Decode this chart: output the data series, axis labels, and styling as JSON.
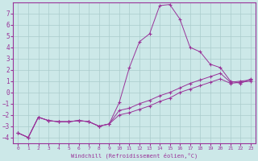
{
  "xlabel": "Windchill (Refroidissement éolien,°C)",
  "bg_color": "#cce8e8",
  "grid_color": "#aacccc",
  "line_color": "#993399",
  "xlim": [
    -0.5,
    23.5
  ],
  "ylim": [
    -4.5,
    8.0
  ],
  "xticks": [
    0,
    1,
    2,
    3,
    4,
    5,
    6,
    7,
    8,
    9,
    10,
    11,
    12,
    13,
    14,
    15,
    16,
    17,
    18,
    19,
    20,
    21,
    22,
    23
  ],
  "yticks": [
    -4,
    -3,
    -2,
    -1,
    0,
    1,
    2,
    3,
    4,
    5,
    6,
    7
  ],
  "line1_x": [
    0,
    1,
    2,
    3,
    4,
    5,
    6,
    7,
    8,
    9,
    10,
    11,
    12,
    13,
    14,
    15,
    16,
    17,
    18,
    19,
    20,
    21,
    22,
    23
  ],
  "line1_y": [
    -3.6,
    -4.0,
    -2.2,
    -2.5,
    -2.6,
    -2.6,
    -2.5,
    -2.6,
    -3.0,
    -2.8,
    -0.9,
    2.2,
    4.5,
    5.2,
    7.7,
    7.8,
    6.5,
    4.0,
    3.6,
    2.5,
    2.2,
    1.0,
    0.8,
    1.2
  ],
  "line2_x": [
    0,
    1,
    2,
    3,
    4,
    5,
    6,
    7,
    8,
    9,
    10,
    11,
    12,
    13,
    14,
    15,
    16,
    17,
    18,
    19,
    20,
    21,
    22,
    23
  ],
  "line2_y": [
    -3.6,
    -4.0,
    -2.2,
    -2.5,
    -2.6,
    -2.6,
    -2.5,
    -2.6,
    -3.0,
    -2.8,
    -2.0,
    -1.8,
    -1.5,
    -1.2,
    -0.8,
    -0.5,
    0.0,
    0.3,
    0.6,
    0.9,
    1.2,
    0.8,
    0.9,
    1.0
  ],
  "line3_x": [
    0,
    1,
    2,
    3,
    4,
    5,
    6,
    7,
    8,
    9,
    10,
    11,
    12,
    13,
    14,
    15,
    16,
    17,
    18,
    19,
    20,
    21,
    22,
    23
  ],
  "line3_y": [
    -3.6,
    -4.0,
    -2.2,
    -2.5,
    -2.6,
    -2.6,
    -2.5,
    -2.6,
    -3.0,
    -2.8,
    -1.6,
    -1.4,
    -1.0,
    -0.7,
    -0.3,
    0.0,
    0.4,
    0.8,
    1.1,
    1.4,
    1.7,
    0.9,
    1.0,
    1.1
  ]
}
